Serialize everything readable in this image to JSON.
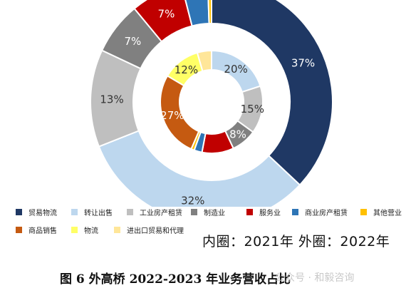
{
  "chart_data": {
    "type": "pie",
    "subtype": "nested-donut",
    "inner_ring": {
      "year": "2021年",
      "slices": [
        {
          "name": "转让出售",
          "value": 20,
          "label": "20%",
          "color": "#bdd7ee"
        },
        {
          "name": "工业房产租赁",
          "value": 15,
          "label": "15%",
          "color": "#bfbfbf"
        },
        {
          "name": "制造业",
          "value": 8,
          "label": "8%",
          "color": "#808080"
        },
        {
          "name": "服务业",
          "value": 10,
          "label": "",
          "color": "#c00000"
        },
        {
          "name": "商业房产租赁",
          "value": 2.5,
          "label": "",
          "color": "#2e75b6"
        },
        {
          "name": "其他营业",
          "value": 1,
          "label": "",
          "color": "#ffc000"
        },
        {
          "name": "商品销售",
          "value": 27,
          "label": "27%",
          "color": "#c55a11"
        },
        {
          "name": "物流",
          "value": 12,
          "label": "12%",
          "color": "#ffff66"
        },
        {
          "name": "进出口贸易和代理",
          "value": 4.5,
          "label": "",
          "color": "#ffe699"
        }
      ]
    },
    "outer_ring": {
      "year": "2022年",
      "slices": [
        {
          "name": "贸易物流",
          "value": 37,
          "label": "37%",
          "color": "#1f3864"
        },
        {
          "name": "转让出售",
          "value": 32,
          "label": "32%",
          "color": "#bdd7ee"
        },
        {
          "name": "工业房产租赁",
          "value": 13,
          "label": "13%",
          "color": "#bfbfbf"
        },
        {
          "name": "制造业",
          "value": 7,
          "label": "7%",
          "color": "#808080"
        },
        {
          "name": "服务业",
          "value": 7,
          "label": "7%",
          "color": "#c00000"
        },
        {
          "name": "商业房产租赁",
          "value": 3.5,
          "label": "",
          "color": "#2e75b6"
        },
        {
          "name": "其他营业",
          "value": 0.5,
          "label": "",
          "color": "#ffc000"
        }
      ]
    },
    "legend": [
      {
        "name": "贸易物流",
        "color": "#1f3864"
      },
      {
        "name": "转让出售",
        "color": "#bdd7ee"
      },
      {
        "name": "工业房产租赁",
        "color": "#bfbfbf"
      },
      {
        "name": "制造业",
        "color": "#808080"
      },
      {
        "name": "服务业",
        "color": "#c00000"
      },
      {
        "name": "商业房产租赁",
        "color": "#2e75b6"
      },
      {
        "name": "其他营业",
        "color": "#ffc000"
      },
      {
        "name": "商品销售",
        "color": "#c55a11"
      },
      {
        "name": "物流",
        "color": "#ffff66"
      },
      {
        "name": "进出口贸易和代理",
        "color": "#ffe699"
      }
    ],
    "legend_placement": "bottom"
  },
  "note": "内圈：2021年 外圈：2022年",
  "caption": "图 6 外高桥 2022-2023 年业务营收占比",
  "watermark": "公众号 · 和毅咨询"
}
